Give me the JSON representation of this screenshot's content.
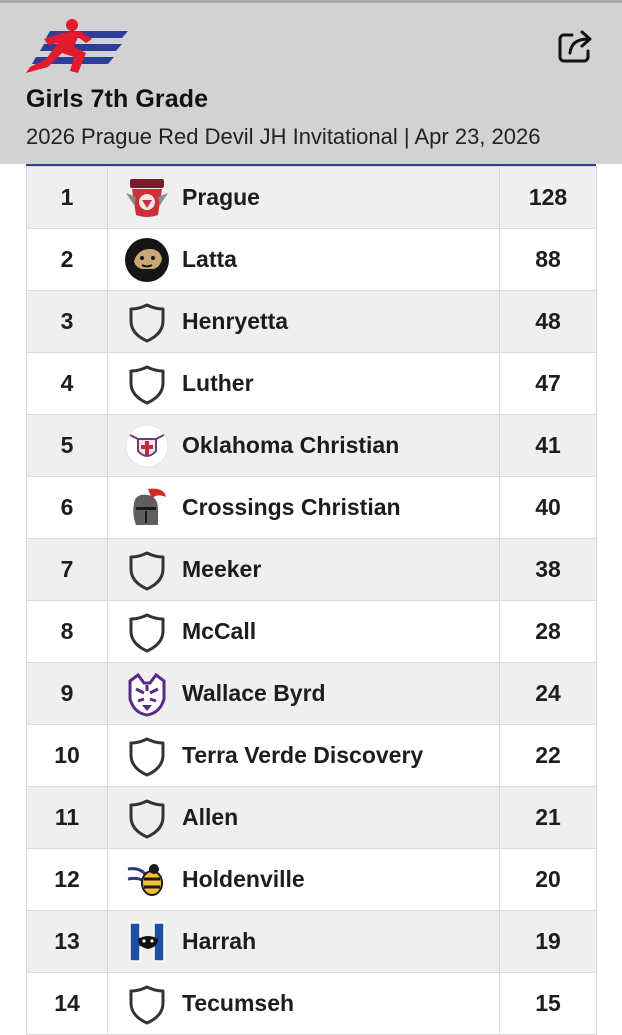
{
  "header": {
    "title": "Girls 7th Grade",
    "subtitle": "2026 Prague Red Devil JH Invitational | Apr 23, 2026",
    "logo_icon": "running-athlete-logo-icon",
    "share_icon": "share-icon"
  },
  "colors": {
    "header_bg": "#d2d2d2",
    "accent_blue": "#2c3e9a",
    "logo_red": "#e21b2d",
    "row_alt": "#efefef"
  },
  "results": [
    {
      "place": "1",
      "team": "Prague",
      "points": "128",
      "logo": "prague-logo"
    },
    {
      "place": "2",
      "team": "Latta",
      "points": "88",
      "logo": "panther-logo"
    },
    {
      "place": "3",
      "team": "Henryetta",
      "points": "48",
      "logo": "shield-icon"
    },
    {
      "place": "4",
      "team": "Luther",
      "points": "47",
      "logo": "shield-icon"
    },
    {
      "place": "5",
      "team": "Oklahoma Christian",
      "points": "41",
      "logo": "crusader-logo"
    },
    {
      "place": "6",
      "team": "Crossings Christian",
      "points": "40",
      "logo": "knight-helmet-logo"
    },
    {
      "place": "7",
      "team": "Meeker",
      "points": "38",
      "logo": "shield-icon"
    },
    {
      "place": "8",
      "team": "McCall",
      "points": "28",
      "logo": "shield-icon"
    },
    {
      "place": "9",
      "team": "Wallace Byrd",
      "points": "24",
      "logo": "tiger-logo"
    },
    {
      "place": "10",
      "team": "Terra Verde Discovery",
      "points": "22",
      "logo": "shield-icon"
    },
    {
      "place": "11",
      "team": "Allen",
      "points": "21",
      "logo": "shield-icon"
    },
    {
      "place": "12",
      "team": "Holdenville",
      "points": "20",
      "logo": "wasp-logo"
    },
    {
      "place": "13",
      "team": "Harrah",
      "points": "19",
      "logo": "h-panther-logo"
    },
    {
      "place": "14",
      "team": "Tecumseh",
      "points": "15",
      "logo": "shield-icon"
    }
  ]
}
